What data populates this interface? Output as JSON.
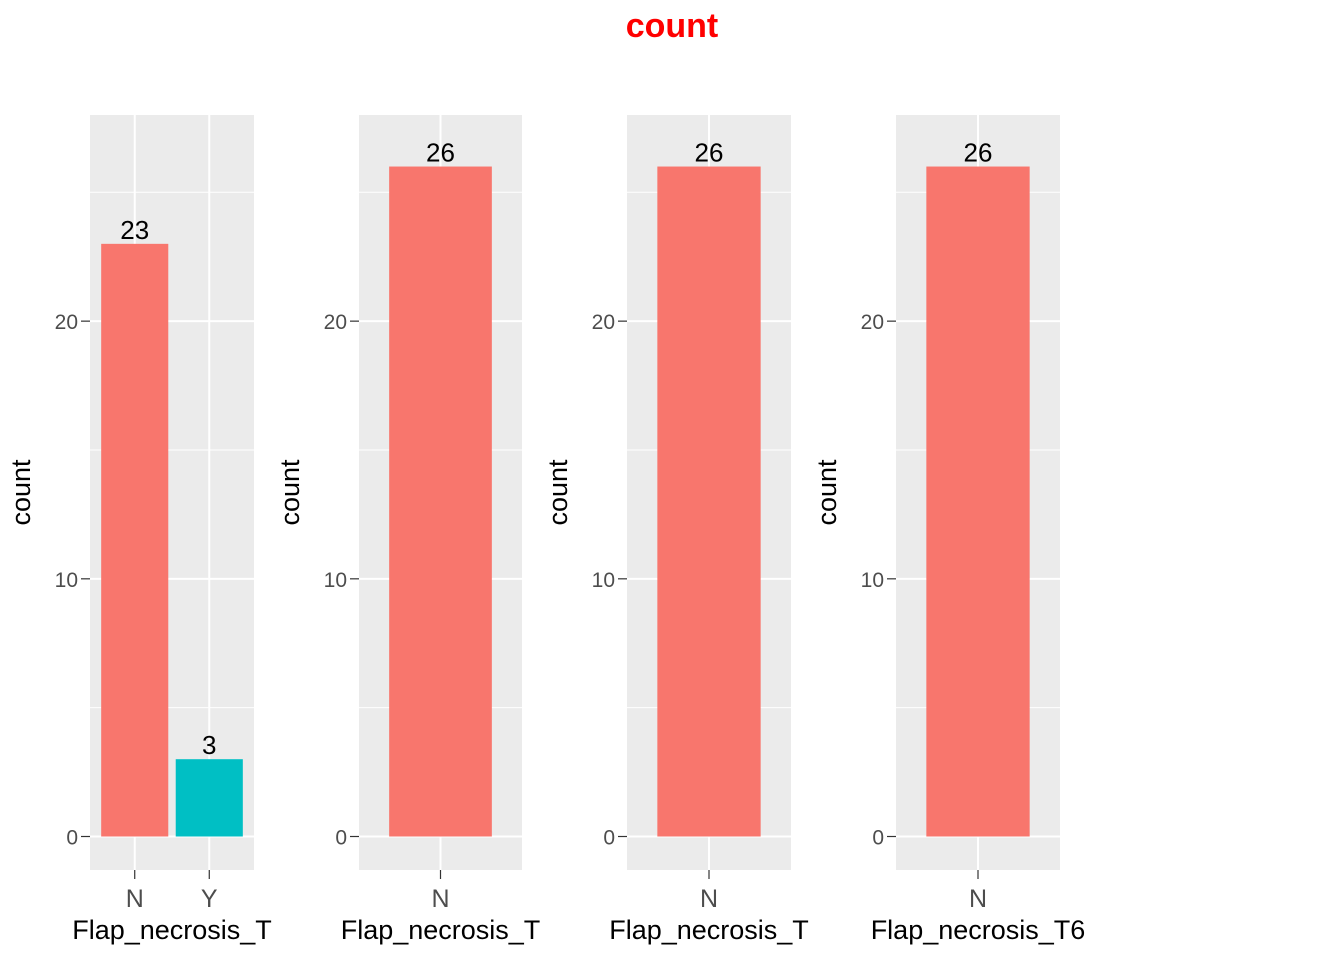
{
  "title": "count",
  "colors": {
    "title": "#ff0000",
    "panel_bg": "#ebebeb",
    "grid": "#ffffff",
    "tick_text": "#4d4d4d",
    "label_text": "#000000",
    "series_N": "#f8766d",
    "series_Y": "#00bfc4"
  },
  "chart_data": [
    {
      "type": "bar",
      "title": "",
      "categories": [
        "N",
        "Y"
      ],
      "values": [
        23,
        3
      ],
      "bar_colors": [
        "#f8766d",
        "#00bfc4"
      ],
      "data_labels": [
        "23",
        "3"
      ],
      "xlabel": "Flap_necrosis_T",
      "ylabel": "count",
      "ylim": [
        -1.3,
        28.0
      ],
      "yticks": [
        0,
        10,
        20
      ],
      "ytick_labels": [
        "0",
        "10",
        "20"
      ],
      "grid": true,
      "legend": "none"
    },
    {
      "type": "bar",
      "title": "",
      "categories": [
        "N"
      ],
      "values": [
        26
      ],
      "bar_colors": [
        "#f8766d"
      ],
      "data_labels": [
        "26"
      ],
      "xlabel": "Flap_necrosis_T",
      "ylabel": "count",
      "ylim": [
        -1.3,
        28.0
      ],
      "yticks": [
        0,
        10,
        20
      ],
      "ytick_labels": [
        "0",
        "10",
        "20"
      ],
      "grid": true,
      "legend": "none"
    },
    {
      "type": "bar",
      "title": "",
      "categories": [
        "N"
      ],
      "values": [
        26
      ],
      "bar_colors": [
        "#f8766d"
      ],
      "data_labels": [
        "26"
      ],
      "xlabel": "Flap_necrosis_T",
      "ylabel": "count",
      "ylim": [
        -1.3,
        28.0
      ],
      "yticks": [
        0,
        10,
        20
      ],
      "ytick_labels": [
        "0",
        "10",
        "20"
      ],
      "grid": true,
      "legend": "none"
    },
    {
      "type": "bar",
      "title": "",
      "categories": [
        "N"
      ],
      "values": [
        26
      ],
      "bar_colors": [
        "#f8766d"
      ],
      "data_labels": [
        "26"
      ],
      "xlabel": "Flap_necrosis_T6",
      "ylabel": "count",
      "ylim": [
        -1.3,
        28.0
      ],
      "yticks": [
        0,
        10,
        20
      ],
      "ytick_labels": [
        "0",
        "10",
        "20"
      ],
      "grid": true,
      "legend": "none"
    }
  ]
}
